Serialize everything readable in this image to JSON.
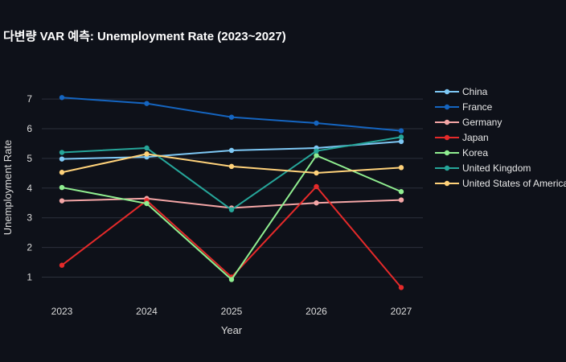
{
  "chart_data": {
    "type": "line",
    "title": "다변량 VAR 예측: Unemployment Rate (2023~2027)",
    "xlabel": "Year",
    "ylabel": "Unemployment Rate",
    "x": [
      "2023",
      "2024",
      "2025",
      "2026",
      "2027"
    ],
    "ylim": [
      0.2,
      7.6
    ],
    "yticks": [
      "1",
      "2",
      "3",
      "4",
      "5",
      "6",
      "7"
    ],
    "grid": true,
    "legend_position": "right",
    "series": [
      {
        "name": "China",
        "color": "#7ec8f5",
        "values": [
          4.98,
          5.05,
          5.27,
          5.35,
          5.57
        ]
      },
      {
        "name": "France",
        "color": "#1565c0",
        "values": [
          7.05,
          6.85,
          6.39,
          6.19,
          5.93
        ]
      },
      {
        "name": "Germany",
        "color": "#f4a6a6",
        "values": [
          3.57,
          3.65,
          3.33,
          3.5,
          3.6
        ]
      },
      {
        "name": "Japan",
        "color": "#e52a2a",
        "values": [
          1.4,
          3.58,
          1.0,
          4.05,
          0.65
        ]
      },
      {
        "name": "Korea",
        "color": "#90ee90",
        "values": [
          4.02,
          3.48,
          0.92,
          5.1,
          3.88
        ]
      },
      {
        "name": "United Kingdom",
        "color": "#26a69a",
        "values": [
          5.2,
          5.35,
          3.27,
          5.25,
          5.72
        ]
      },
      {
        "name": "United States of America",
        "color": "#ffd27a",
        "values": [
          4.53,
          5.15,
          4.73,
          4.51,
          4.69
        ]
      }
    ]
  }
}
